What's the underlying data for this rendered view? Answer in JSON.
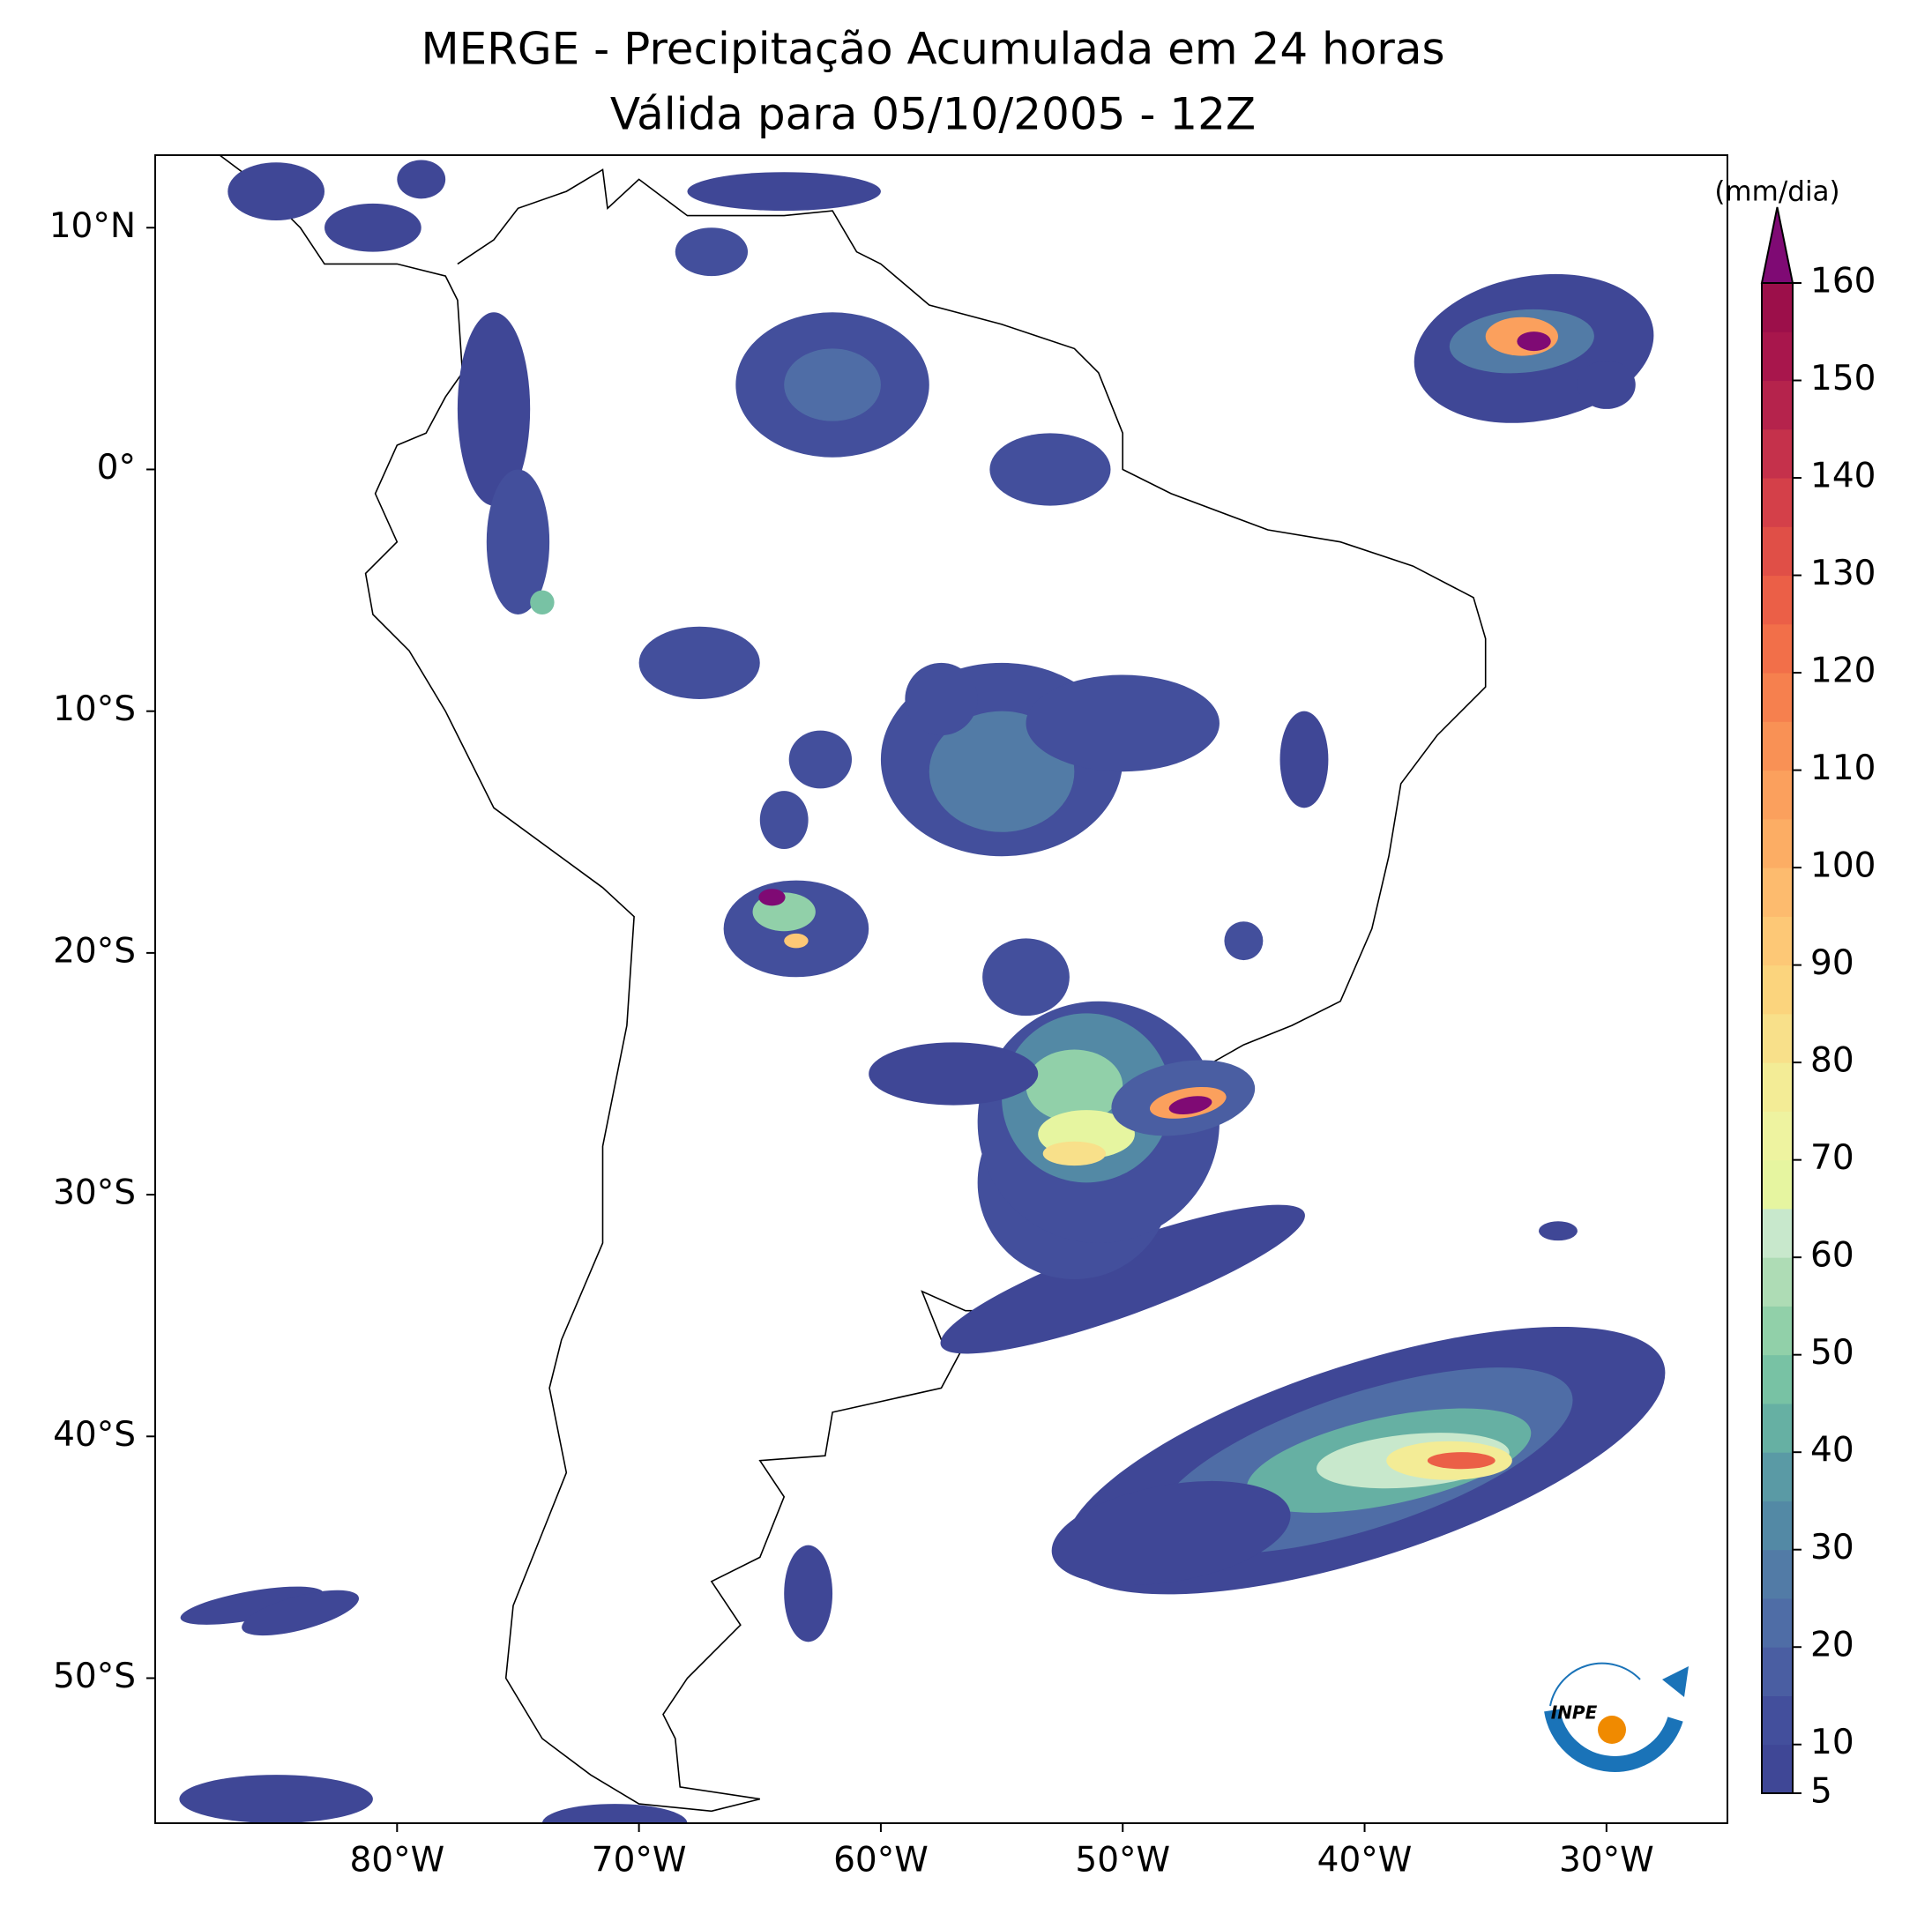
{
  "chart_data": {
    "type": "map",
    "title": "MERGE - Precipitação Acumulada em 24 horas",
    "subtitle": "Válida para 05/10/2005 - 12Z",
    "xlim": [
      -90,
      -25
    ],
    "ylim": [
      -56,
      13
    ],
    "xticks": [
      {
        "value": -80,
        "label": "80°W"
      },
      {
        "value": -70,
        "label": "70°W"
      },
      {
        "value": -60,
        "label": "60°W"
      },
      {
        "value": -50,
        "label": "50°W"
      },
      {
        "value": -40,
        "label": "40°W"
      },
      {
        "value": -30,
        "label": "30°W"
      }
    ],
    "yticks": [
      {
        "value": 10,
        "label": "10°N"
      },
      {
        "value": 0,
        "label": "0°"
      },
      {
        "value": -10,
        "label": "10°S"
      },
      {
        "value": -20,
        "label": "20°S"
      },
      {
        "value": -30,
        "label": "30°S"
      },
      {
        "value": -40,
        "label": "40°S"
      },
      {
        "value": -50,
        "label": "50°S"
      }
    ],
    "colorbar": {
      "label": "(mm/dia)",
      "lim": [
        5,
        160
      ],
      "ticks": [
        5,
        10,
        20,
        30,
        40,
        50,
        60,
        70,
        80,
        90,
        100,
        110,
        120,
        130,
        140,
        150,
        160
      ],
      "levels": [
        5,
        10,
        15,
        20,
        25,
        30,
        35,
        40,
        45,
        50,
        55,
        60,
        65,
        70,
        75,
        80,
        85,
        90,
        95,
        100,
        105,
        110,
        115,
        120,
        125,
        130,
        135,
        140,
        145,
        150,
        155,
        160
      ],
      "colors": [
        "#3f4796",
        "#434f9c",
        "#4a5ea2",
        "#4f6da6",
        "#527ba6",
        "#5389a5",
        "#5a9aa5",
        "#66b0a3",
        "#78c2a4",
        "#91d0a9",
        "#aedcb5",
        "#c8e8cc",
        "#e6f5a0",
        "#eef3a0",
        "#f3ec96",
        "#f8e08a",
        "#fbd47d",
        "#fdc876",
        "#fdbb6e",
        "#fcad64",
        "#fba05d",
        "#f99155",
        "#f6804e",
        "#f26f49",
        "#eb5f47",
        "#e04f47",
        "#d44049",
        "#c5314b",
        "#b5234c",
        "#a8164c",
        "#9c0f4a"
      ],
      "extend_color": "#7f0a74"
    },
    "logo_text": "INPE"
  }
}
